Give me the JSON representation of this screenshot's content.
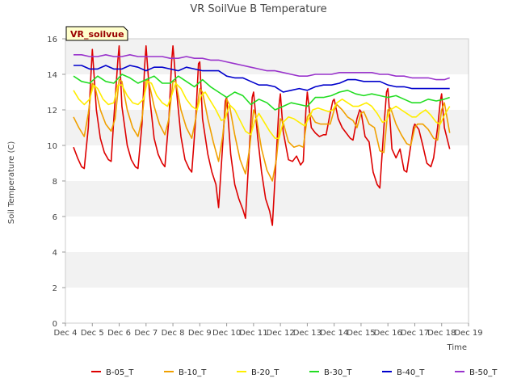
{
  "chart_data": {
    "type": "line",
    "title": "VR SoilVue B Temperature",
    "badge": "VR_soilvue",
    "xlabel": "Time",
    "ylabel": "Soil Temperature (C)",
    "xlim": [
      4,
      19
    ],
    "ylim": [
      0,
      16
    ],
    "x_ticks": [
      4,
      5,
      6,
      7,
      8,
      9,
      10,
      11,
      12,
      13,
      14,
      15,
      16,
      17,
      18,
      19
    ],
    "x_tick_labels": [
      "Dec 4",
      "Dec 5",
      "Dec 6",
      "Dec 7",
      "Dec 8",
      "Dec 9",
      "Dec 10",
      "Dec 11",
      "Dec 12",
      "Dec 13",
      "Dec 14",
      "Dec 15",
      "Dec 16",
      "Dec 17",
      "Dec 18",
      "Dec 19"
    ],
    "y_ticks": [
      0,
      2,
      4,
      6,
      8,
      10,
      12,
      14,
      16
    ],
    "grid": "alternating horizontal bands",
    "legend_position": "bottom",
    "series": [
      {
        "name": "B-05_T",
        "color": "#dd0000",
        "x": [
          4.3,
          4.45,
          4.6,
          4.7,
          4.85,
          4.95,
          5.0,
          5.15,
          5.3,
          5.45,
          5.6,
          5.7,
          5.8,
          5.95,
          6.0,
          6.1,
          6.3,
          6.45,
          6.6,
          6.7,
          6.85,
          6.95,
          7.0,
          7.15,
          7.3,
          7.45,
          7.6,
          7.7,
          7.85,
          7.95,
          8.0,
          8.15,
          8.3,
          8.45,
          8.6,
          8.7,
          8.85,
          8.95,
          9.0,
          9.1,
          9.3,
          9.45,
          9.6,
          9.7,
          9.85,
          9.95,
          10.0,
          10.15,
          10.3,
          10.45,
          10.6,
          10.7,
          10.85,
          10.95,
          11.0,
          11.15,
          11.3,
          11.45,
          11.6,
          11.7,
          11.85,
          11.95,
          12.0,
          12.1,
          12.3,
          12.45,
          12.6,
          12.75,
          12.85,
          12.95,
          13.0,
          13.15,
          13.3,
          13.45,
          13.6,
          13.7,
          13.85,
          13.95,
          14.0,
          14.15,
          14.3,
          14.45,
          14.6,
          14.7,
          14.85,
          14.95,
          15.0,
          15.15,
          15.3,
          15.45,
          15.6,
          15.7,
          15.85,
          15.95,
          16.0,
          16.15,
          16.3,
          16.45,
          16.6,
          16.7,
          16.85,
          16.95,
          17.0,
          17.15,
          17.3,
          17.45,
          17.6,
          17.7,
          17.85,
          17.95,
          18.0,
          18.1,
          18.3
        ],
        "y": [
          9.9,
          9.3,
          8.8,
          8.7,
          11.0,
          14.0,
          15.4,
          12.0,
          10.4,
          9.6,
          9.2,
          9.1,
          11.5,
          14.8,
          15.6,
          12.2,
          10.0,
          9.2,
          8.8,
          8.7,
          11.2,
          14.5,
          15.6,
          12.5,
          10.4,
          9.5,
          9.0,
          8.8,
          11.5,
          14.7,
          15.6,
          12.8,
          10.5,
          9.2,
          8.7,
          8.5,
          11.5,
          14.6,
          14.7,
          11.5,
          9.5,
          8.5,
          7.8,
          6.5,
          10.0,
          12.5,
          12.7,
          9.5,
          7.8,
          7.0,
          6.4,
          5.9,
          10.0,
          12.7,
          13.0,
          10.5,
          8.5,
          7.0,
          6.3,
          5.5,
          9.5,
          12.3,
          12.9,
          10.8,
          9.2,
          9.1,
          9.4,
          8.9,
          9.1,
          12.0,
          13.0,
          11.0,
          10.7,
          10.5,
          10.6,
          10.6,
          11.8,
          12.5,
          12.6,
          11.5,
          11.0,
          10.7,
          10.4,
          10.3,
          11.5,
          12.0,
          11.9,
          10.5,
          10.2,
          8.5,
          7.8,
          7.6,
          11.0,
          13.0,
          13.2,
          9.8,
          9.3,
          9.8,
          8.6,
          8.5,
          10.0,
          11.0,
          11.2,
          10.9,
          10.0,
          9.0,
          8.8,
          9.3,
          11.0,
          12.5,
          12.9,
          11.0,
          9.8
        ]
      },
      {
        "name": "B-10_T",
        "color": "#f0a000",
        "x": [
          4.3,
          4.5,
          4.7,
          4.85,
          5.0,
          5.1,
          5.3,
          5.5,
          5.7,
          5.85,
          6.0,
          6.1,
          6.3,
          6.5,
          6.7,
          6.85,
          7.0,
          7.1,
          7.3,
          7.5,
          7.7,
          7.85,
          8.0,
          8.1,
          8.3,
          8.5,
          8.7,
          8.85,
          9.0,
          9.1,
          9.3,
          9.5,
          9.7,
          9.85,
          10.0,
          10.1,
          10.3,
          10.5,
          10.7,
          10.85,
          11.0,
          11.1,
          11.3,
          11.5,
          11.7,
          11.85,
          12.0,
          12.1,
          12.3,
          12.5,
          12.7,
          12.85,
          13.0,
          13.1,
          13.3,
          13.5,
          13.7,
          13.85,
          14.0,
          14.1,
          14.3,
          14.5,
          14.7,
          14.85,
          15.0,
          15.1,
          15.3,
          15.5,
          15.7,
          15.85,
          16.0,
          16.1,
          16.3,
          16.5,
          16.7,
          16.85,
          17.0,
          17.1,
          17.3,
          17.5,
          17.7,
          17.85,
          18.0,
          18.1,
          18.3
        ],
        "y": [
          11.6,
          11.0,
          10.5,
          11.8,
          13.5,
          13.3,
          12.0,
          11.2,
          10.8,
          11.5,
          13.7,
          13.6,
          12.0,
          11.0,
          10.5,
          11.5,
          13.7,
          13.6,
          12.2,
          11.2,
          10.6,
          11.5,
          13.6,
          13.6,
          12.0,
          11.0,
          10.4,
          11.5,
          13.2,
          13.0,
          11.5,
          10.2,
          9.1,
          10.5,
          12.6,
          12.3,
          10.6,
          9.2,
          8.4,
          9.8,
          12.0,
          11.6,
          9.8,
          8.6,
          8.0,
          9.2,
          11.5,
          11.3,
          10.2,
          9.9,
          10.0,
          9.9,
          11.6,
          11.8,
          11.3,
          11.2,
          11.2,
          11.2,
          12.0,
          12.3,
          12.0,
          11.6,
          11.4,
          11.0,
          11.8,
          11.9,
          11.2,
          11.0,
          9.7,
          9.6,
          12.0,
          12.1,
          11.2,
          10.6,
          10.1,
          10.0,
          11.0,
          11.2,
          11.2,
          10.9,
          10.4,
          10.3,
          12.0,
          12.4,
          10.7
        ]
      },
      {
        "name": "B-20_T",
        "color": "#ffee00",
        "x": [
          4.3,
          4.5,
          4.7,
          4.9,
          5.05,
          5.2,
          5.4,
          5.6,
          5.8,
          5.95,
          6.1,
          6.3,
          6.5,
          6.7,
          6.9,
          7.05,
          7.2,
          7.4,
          7.6,
          7.8,
          7.95,
          8.1,
          8.3,
          8.5,
          8.7,
          8.9,
          9.05,
          9.2,
          9.4,
          9.6,
          9.8,
          9.95,
          10.1,
          10.3,
          10.5,
          10.7,
          10.9,
          11.05,
          11.2,
          11.4,
          11.6,
          11.8,
          11.95,
          12.1,
          12.3,
          12.5,
          12.7,
          12.9,
          13.05,
          13.2,
          13.4,
          13.6,
          13.8,
          13.95,
          14.1,
          14.3,
          14.5,
          14.7,
          14.9,
          15.05,
          15.2,
          15.4,
          15.6,
          15.8,
          15.95,
          16.1,
          16.3,
          16.5,
          16.7,
          16.9,
          17.05,
          17.2,
          17.4,
          17.6,
          17.8,
          17.95,
          18.1,
          18.3
        ],
        "y": [
          13.1,
          12.6,
          12.3,
          12.6,
          13.4,
          13.2,
          12.6,
          12.3,
          12.4,
          13.4,
          13.4,
          12.8,
          12.4,
          12.3,
          12.6,
          13.6,
          13.5,
          12.8,
          12.4,
          12.2,
          12.8,
          13.5,
          13.2,
          12.6,
          12.2,
          12.0,
          12.8,
          13.0,
          12.5,
          12.0,
          11.4,
          11.5,
          12.3,
          12.0,
          11.4,
          10.8,
          10.6,
          11.4,
          11.8,
          11.3,
          10.8,
          10.4,
          10.4,
          11.3,
          11.6,
          11.5,
          11.3,
          11.1,
          11.5,
          12.0,
          12.1,
          12.0,
          11.9,
          12.0,
          12.4,
          12.6,
          12.4,
          12.2,
          12.2,
          12.3,
          12.4,
          12.2,
          11.8,
          11.3,
          11.4,
          12.0,
          12.2,
          12.0,
          11.8,
          11.6,
          11.6,
          11.8,
          12.0,
          11.7,
          11.3,
          11.2,
          11.7,
          12.2
        ]
      },
      {
        "name": "B-30_T",
        "color": "#22dd22",
        "x": [
          4.3,
          4.6,
          4.9,
          5.2,
          5.5,
          5.8,
          6.1,
          6.4,
          6.7,
          7.0,
          7.3,
          7.6,
          7.9,
          8.2,
          8.5,
          8.8,
          9.1,
          9.4,
          9.7,
          10.0,
          10.3,
          10.6,
          10.9,
          11.2,
          11.5,
          11.8,
          12.1,
          12.4,
          12.7,
          13.0,
          13.3,
          13.6,
          13.9,
          14.2,
          14.5,
          14.8,
          15.1,
          15.4,
          15.7,
          16.0,
          16.3,
          16.6,
          16.9,
          17.2,
          17.5,
          17.8,
          18.1,
          18.3
        ],
        "y": [
          13.9,
          13.6,
          13.5,
          13.9,
          13.6,
          13.5,
          14.0,
          13.8,
          13.5,
          13.7,
          13.9,
          13.5,
          13.5,
          13.9,
          13.6,
          13.3,
          13.7,
          13.3,
          13.0,
          12.7,
          13.0,
          12.8,
          12.3,
          12.6,
          12.4,
          12.0,
          12.2,
          12.4,
          12.3,
          12.2,
          12.7,
          12.7,
          12.8,
          13.0,
          13.1,
          12.9,
          12.8,
          12.9,
          12.8,
          12.7,
          12.8,
          12.6,
          12.4,
          12.4,
          12.6,
          12.5,
          12.6,
          12.7
        ]
      },
      {
        "name": "B-40_T",
        "color": "#0000cc",
        "x": [
          4.3,
          4.6,
          4.9,
          5.2,
          5.5,
          5.8,
          6.1,
          6.4,
          6.7,
          7.0,
          7.3,
          7.6,
          7.9,
          8.2,
          8.5,
          8.8,
          9.1,
          9.4,
          9.7,
          10.0,
          10.3,
          10.6,
          10.9,
          11.2,
          11.5,
          11.8,
          12.1,
          12.4,
          12.7,
          13.0,
          13.3,
          13.6,
          13.9,
          14.2,
          14.5,
          14.8,
          15.1,
          15.4,
          15.7,
          16.0,
          16.3,
          16.6,
          16.9,
          17.2,
          17.5,
          17.8,
          18.1,
          18.3
        ],
        "y": [
          14.5,
          14.5,
          14.3,
          14.3,
          14.5,
          14.3,
          14.3,
          14.5,
          14.4,
          14.2,
          14.4,
          14.4,
          14.3,
          14.2,
          14.4,
          14.3,
          14.2,
          14.2,
          14.2,
          13.9,
          13.8,
          13.8,
          13.6,
          13.4,
          13.4,
          13.3,
          13.0,
          13.1,
          13.2,
          13.1,
          13.3,
          13.4,
          13.4,
          13.5,
          13.7,
          13.7,
          13.6,
          13.6,
          13.6,
          13.4,
          13.3,
          13.3,
          13.2,
          13.2,
          13.2,
          13.2,
          13.2,
          13.2
        ]
      },
      {
        "name": "B-50_T",
        "color": "#9933cc",
        "x": [
          4.3,
          4.6,
          4.9,
          5.2,
          5.5,
          5.8,
          6.1,
          6.4,
          6.7,
          7.0,
          7.3,
          7.6,
          7.9,
          8.2,
          8.5,
          8.8,
          9.1,
          9.4,
          9.7,
          10.0,
          10.3,
          10.6,
          10.9,
          11.2,
          11.5,
          11.8,
          12.1,
          12.4,
          12.7,
          13.0,
          13.3,
          13.6,
          13.9,
          14.2,
          14.5,
          14.8,
          15.1,
          15.4,
          15.7,
          16.0,
          16.3,
          16.6,
          16.9,
          17.2,
          17.5,
          17.8,
          18.1,
          18.3
        ],
        "y": [
          15.1,
          15.1,
          15.0,
          15.0,
          15.1,
          15.0,
          15.0,
          15.1,
          15.0,
          15.0,
          15.0,
          15.0,
          14.9,
          14.9,
          15.0,
          14.9,
          14.9,
          14.8,
          14.8,
          14.7,
          14.6,
          14.5,
          14.4,
          14.3,
          14.2,
          14.2,
          14.1,
          14.0,
          13.9,
          13.9,
          14.0,
          14.0,
          14.0,
          14.1,
          14.1,
          14.1,
          14.1,
          14.1,
          14.0,
          14.0,
          13.9,
          13.9,
          13.8,
          13.8,
          13.8,
          13.7,
          13.7,
          13.8
        ]
      }
    ]
  }
}
